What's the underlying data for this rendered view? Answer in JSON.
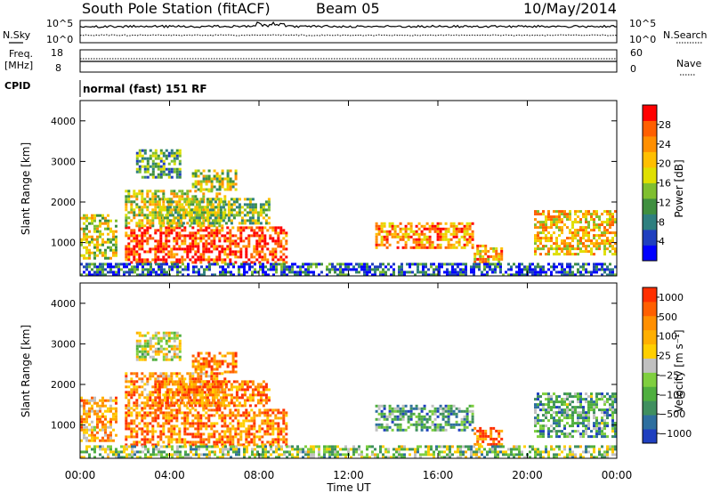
{
  "header": {
    "title": "South Pole Station (fitACF)",
    "beam": "Beam 05",
    "date": "10/May/2014"
  },
  "top_panels": {
    "nsky_label": "N.Sky",
    "nsearch_label": "N.Search",
    "log_top": "10^5",
    "log_bottom": "10^0",
    "freq_label_1": "Freq.",
    "freq_label_2": "[MHz]",
    "freq_top": "18",
    "freq_bottom": "8",
    "nave_label": "Nave",
    "nave_top": "60",
    "nave_bottom": "0",
    "cpid_label": "CPID",
    "cpid_text": "normal (fast) 151 RF"
  },
  "x_axis": {
    "label": "Time UT",
    "ticks": [
      "00:00",
      "04:00",
      "08:00",
      "12:00",
      "16:00",
      "20:00",
      "00:00"
    ]
  },
  "chart_data": [
    {
      "type": "heatmap",
      "name": "power",
      "ylabel": "Slant Range [km]",
      "ylim": [
        180,
        4500
      ],
      "yticks": [
        1000,
        2000,
        3000,
        4000
      ],
      "xlim_hours": [
        0,
        24
      ],
      "colorbar": {
        "label": "Power [dB]",
        "ticks": [
          "4",
          "8",
          "12",
          "16",
          "20",
          "24",
          "28"
        ],
        "colors": [
          "#0000ff",
          "#1f3fbf",
          "#2e7f7f",
          "#3f8f3f",
          "#7fbf2f",
          "#dfdf00",
          "#ffbf00",
          "#ff8f00",
          "#ff5f00",
          "#ff0000"
        ]
      },
      "echo_regions": [
        {
          "x": [
            0.0,
            1.6
          ],
          "y": [
            600,
            1700
          ],
          "level": 0.55
        },
        {
          "x": [
            2.0,
            9.2
          ],
          "y": [
            500,
            1400
          ],
          "level": 0.9
        },
        {
          "x": [
            2.0,
            6.5
          ],
          "y": [
            1400,
            2300
          ],
          "level": 0.55
        },
        {
          "x": [
            3.5,
            8.5
          ],
          "y": [
            1500,
            2100
          ],
          "level": 0.45
        },
        {
          "x": [
            5.0,
            7.0
          ],
          "y": [
            2300,
            2800
          ],
          "level": 0.5
        },
        {
          "x": [
            2.5,
            4.5
          ],
          "y": [
            2600,
            3300
          ],
          "level": 0.35
        },
        {
          "x": [
            13.2,
            17.5
          ],
          "y": [
            850,
            1500
          ],
          "level": 0.75
        },
        {
          "x": [
            17.6,
            18.8
          ],
          "y": [
            550,
            950
          ],
          "level": 0.7
        },
        {
          "x": [
            20.3,
            24.0
          ],
          "y": [
            700,
            1800
          ],
          "level": 0.65
        },
        {
          "x": [
            0.0,
            24.0
          ],
          "y": [
            200,
            500
          ],
          "level": 0.2
        }
      ]
    },
    {
      "type": "heatmap",
      "name": "velocity",
      "ylabel": "Slant Range [km]",
      "ylim": [
        180,
        4500
      ],
      "yticks": [
        1000,
        2000,
        3000,
        4000
      ],
      "xlim_hours": [
        0,
        24
      ],
      "colorbar": {
        "label": "Velocity [m s⁻¹]",
        "ticks": [
          "1000",
          "500",
          "100",
          "25",
          "−25",
          "−100",
          "−500",
          "−1000"
        ],
        "colors": [
          "#1f3fbf",
          "#2e6f9f",
          "#3f8f5f",
          "#4faf3f",
          "#7fcf3f",
          "#c0c0c0",
          "#ffcf00",
          "#ffaf00",
          "#ff8f00",
          "#ff5f00",
          "#ff2f00"
        ]
      },
      "echo_regions": [
        {
          "x": [
            0.0,
            1.6
          ],
          "y": [
            600,
            1700
          ],
          "level": 0.7
        },
        {
          "x": [
            2.0,
            9.2
          ],
          "y": [
            500,
            1400
          ],
          "level": 0.8
        },
        {
          "x": [
            2.0,
            6.5
          ],
          "y": [
            1400,
            2300
          ],
          "level": 0.75
        },
        {
          "x": [
            3.5,
            8.5
          ],
          "y": [
            1500,
            2100
          ],
          "level": 0.8
        },
        {
          "x": [
            5.0,
            7.0
          ],
          "y": [
            2300,
            2800
          ],
          "level": 0.8
        },
        {
          "x": [
            2.5,
            4.5
          ],
          "y": [
            2600,
            3300
          ],
          "level": 0.5
        },
        {
          "x": [
            13.2,
            17.5
          ],
          "y": [
            850,
            1500
          ],
          "level": 0.3
        },
        {
          "x": [
            17.6,
            18.8
          ],
          "y": [
            550,
            950
          ],
          "level": 0.85
        },
        {
          "x": [
            20.3,
            24.0
          ],
          "y": [
            700,
            1800
          ],
          "level": 0.3
        },
        {
          "x": [
            0.0,
            24.0
          ],
          "y": [
            200,
            500
          ],
          "level": 0.4
        }
      ]
    }
  ]
}
